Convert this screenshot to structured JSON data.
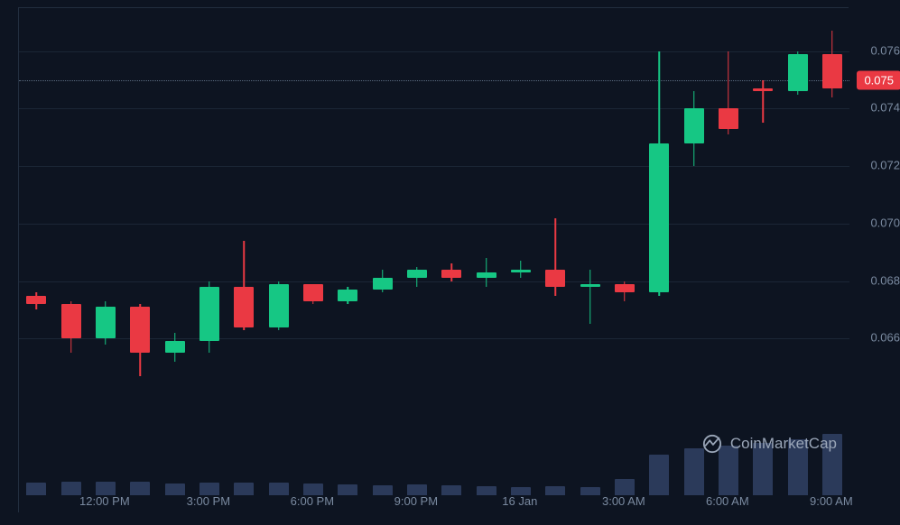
{
  "chart": {
    "type": "candlestick",
    "background_color": "#0d1421",
    "grid_color": "#1b2636",
    "border_color": "#222e3f",
    "text_color": "#7a8aa0",
    "up_color": "#16c784",
    "down_color": "#ea3943",
    "volume_color": "#2b3a5a",
    "price_line_color": "#5a6b80",
    "price_badge_bg": "#ea3943",
    "price_badge_text": "#ffffff",
    "ylim": [
      0.064,
      0.0775
    ],
    "yticks": [
      0.066,
      0.068,
      0.07,
      0.072,
      0.074,
      0.076
    ],
    "ytick_labels": [
      "0.066",
      "0.068",
      "0.070",
      "0.072",
      "0.074",
      "0.076"
    ],
    "current_price": 0.075,
    "current_price_label": "0.075",
    "xticks": [
      2,
      5,
      8,
      11,
      14,
      17,
      20,
      23
    ],
    "xtick_labels": [
      "12:00 PM",
      "3:00 PM",
      "6:00 PM",
      "9:00 PM",
      "16 Jan",
      "3:00 AM",
      "6:00 AM",
      "9:00 AM"
    ],
    "candle_width": 22,
    "candles": [
      {
        "i": 0,
        "o": 0.0675,
        "h": 0.0676,
        "l": 0.067,
        "c": 0.0672,
        "v": 14
      },
      {
        "i": 1,
        "o": 0.0672,
        "h": 0.0673,
        "l": 0.0655,
        "c": 0.066,
        "v": 15
      },
      {
        "i": 2,
        "o": 0.066,
        "h": 0.0673,
        "l": 0.0658,
        "c": 0.0671,
        "v": 15
      },
      {
        "i": 3,
        "o": 0.0671,
        "h": 0.0672,
        "l": 0.0647,
        "c": 0.0655,
        "v": 15
      },
      {
        "i": 4,
        "o": 0.0655,
        "h": 0.0662,
        "l": 0.0652,
        "c": 0.0659,
        "v": 13
      },
      {
        "i": 5,
        "o": 0.0659,
        "h": 0.068,
        "l": 0.0655,
        "c": 0.0678,
        "v": 14
      },
      {
        "i": 6,
        "o": 0.0678,
        "h": 0.0694,
        "l": 0.0663,
        "c": 0.0664,
        "v": 14
      },
      {
        "i": 7,
        "o": 0.0664,
        "h": 0.068,
        "l": 0.0663,
        "c": 0.0679,
        "v": 14
      },
      {
        "i": 8,
        "o": 0.0679,
        "h": 0.0679,
        "l": 0.0672,
        "c": 0.0673,
        "v": 13
      },
      {
        "i": 9,
        "o": 0.0673,
        "h": 0.0678,
        "l": 0.0672,
        "c": 0.0677,
        "v": 12
      },
      {
        "i": 10,
        "o": 0.0677,
        "h": 0.0684,
        "l": 0.0676,
        "c": 0.0681,
        "v": 11
      },
      {
        "i": 11,
        "o": 0.0681,
        "h": 0.0685,
        "l": 0.0678,
        "c": 0.0684,
        "v": 12
      },
      {
        "i": 12,
        "o": 0.0684,
        "h": 0.0686,
        "l": 0.068,
        "c": 0.0681,
        "v": 11
      },
      {
        "i": 13,
        "o": 0.0681,
        "h": 0.0688,
        "l": 0.0678,
        "c": 0.0683,
        "v": 10
      },
      {
        "i": 14,
        "o": 0.0683,
        "h": 0.0687,
        "l": 0.0681,
        "c": 0.0684,
        "v": 9
      },
      {
        "i": 15,
        "o": 0.0684,
        "h": 0.0702,
        "l": 0.0675,
        "c": 0.0678,
        "v": 10
      },
      {
        "i": 16,
        "o": 0.0678,
        "h": 0.0684,
        "l": 0.0665,
        "c": 0.0679,
        "v": 9
      },
      {
        "i": 17,
        "o": 0.0679,
        "h": 0.068,
        "l": 0.0673,
        "c": 0.0676,
        "v": 18
      },
      {
        "i": 18,
        "o": 0.0676,
        "h": 0.076,
        "l": 0.0675,
        "c": 0.0728,
        "v": 45
      },
      {
        "i": 19,
        "o": 0.0728,
        "h": 0.0746,
        "l": 0.072,
        "c": 0.074,
        "v": 52
      },
      {
        "i": 20,
        "o": 0.074,
        "h": 0.076,
        "l": 0.0731,
        "c": 0.0733,
        "v": 55
      },
      {
        "i": 21,
        "o": 0.0747,
        "h": 0.075,
        "l": 0.0735,
        "c": 0.0746,
        "v": 58
      },
      {
        "i": 22,
        "o": 0.0746,
        "h": 0.076,
        "l": 0.0745,
        "c": 0.0759,
        "v": 62
      },
      {
        "i": 23,
        "o": 0.0759,
        "h": 0.0767,
        "l": 0.0744,
        "c": 0.0747,
        "v": 68
      }
    ],
    "volume_max": 100,
    "watermark_text": "CoinMarketCap"
  }
}
